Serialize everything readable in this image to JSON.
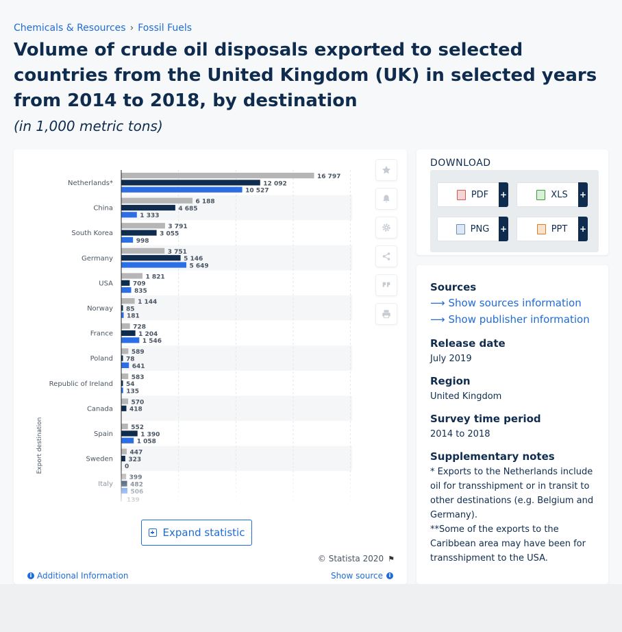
{
  "breadcrumb": {
    "item1": "Chemicals & Resources",
    "sep": "›",
    "item2": "Fossil Fuels"
  },
  "title": "Volume of crude oil disposals exported to selected countries from the United Kingdom (UK) in selected years from 2014 to 2018, by destination",
  "subtitle": "(in 1,000 metric tons)",
  "colors": {
    "series2014": "#b6b6b6",
    "series2016": "#0f2c4f",
    "series2018": "#2b6ee6",
    "accent": "#1f6bd8"
  },
  "chart_data": {
    "type": "bar",
    "orientation": "horizontal",
    "title": "",
    "xlabel": "",
    "ylabel": "Export destination",
    "xlim": [
      0,
      20000
    ],
    "grid": true,
    "categories": [
      "Netherlands*",
      "China",
      "South Korea",
      "Germany",
      "USA",
      "Norway",
      "France",
      "Poland",
      "Republic of Ireland",
      "Canada",
      "Spain",
      "Sweden",
      "Italy"
    ],
    "series": [
      {
        "values": [
          16797,
          6188,
          3791,
          3751,
          1821,
          1144,
          728,
          589,
          583,
          570,
          552,
          447,
          399
        ]
      },
      {
        "values": [
          12092,
          4685,
          3055,
          5146,
          709,
          85,
          1204,
          78,
          54,
          418,
          1390,
          323,
          482
        ]
      },
      {
        "values": [
          10527,
          1333,
          998,
          5649,
          835,
          181,
          1546,
          641,
          135,
          null,
          1058,
          0,
          506
        ]
      }
    ],
    "value_labels": [
      [
        "16 797",
        "6 188",
        "3 791",
        "3 751",
        "1 821",
        "1 144",
        "728",
        "589",
        "583",
        "570",
        "552",
        "447",
        "399"
      ],
      [
        "12 092",
        "4 685",
        "3 055",
        "5 146",
        "709",
        "85",
        "1 204",
        "78",
        "54",
        "418",
        "1 390",
        "323",
        "482"
      ],
      [
        "10 527",
        "1 333",
        "998",
        "5 649",
        "835",
        "181",
        "1 546",
        "641",
        "135",
        "",
        "1 058",
        "0",
        "506"
      ]
    ],
    "partial_label": "139"
  },
  "tools": {
    "star": "star-icon",
    "bell": "bell-icon",
    "gear": "gear-icon",
    "share": "share-icon",
    "quote": "quote-icon",
    "print": "print-icon"
  },
  "expand_label": "Expand statistic",
  "copyright": "© Statista 2020",
  "additional_info": "Additional Information",
  "show_source": "Show source",
  "download": {
    "title": "DOWNLOAD",
    "pdf": "PDF",
    "xls": "XLS",
    "png": "PNG",
    "ppt": "PPT",
    "plus": "+"
  },
  "info": {
    "sources_title": "Sources",
    "show_sources": "Show sources information",
    "show_publisher": "Show publisher information",
    "release_title": "Release date",
    "release_value": "July 2019",
    "region_title": "Region",
    "region_value": "United Kingdom",
    "survey_title": "Survey time period",
    "survey_value": "2014 to 2018",
    "notes_title": "Supplementary notes",
    "note1": "* Exports to the Netherlands include oil for transshipment or in transit to other destinations (e.g. Belgium and Germany).",
    "note2": "**Some of the exports to the Caribbean area may have been for transshipment to the USA."
  }
}
